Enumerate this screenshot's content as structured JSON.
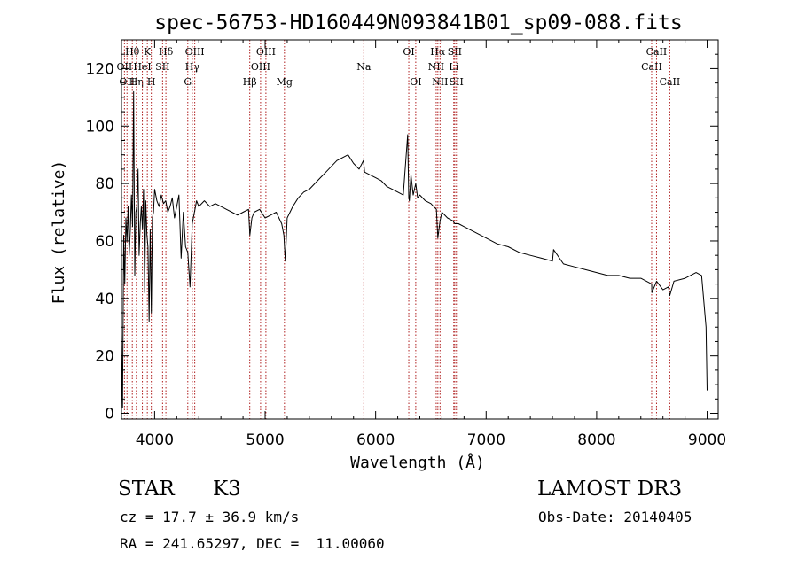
{
  "chart_data": {
    "type": "line",
    "title": "spec-56753-HD160449N093841B01_sp09-088.fits",
    "xlabel": "Wavelength (Å)",
    "ylabel": "Flux (relative)",
    "xlim": [
      3700,
      9100
    ],
    "ylim": [
      -2,
      130
    ],
    "xticks": [
      4000,
      5000,
      6000,
      7000,
      8000,
      9000
    ],
    "yticks": [
      0,
      20,
      40,
      60,
      80,
      100,
      120
    ],
    "grid": false,
    "line_color": "#000000",
    "marker_color": "#b02020",
    "series": [
      {
        "name": "flux",
        "x": [
          3700,
          3710,
          3720,
          3730,
          3740,
          3750,
          3760,
          3770,
          3780,
          3790,
          3800,
          3810,
          3820,
          3830,
          3840,
          3850,
          3860,
          3870,
          3880,
          3890,
          3900,
          3910,
          3920,
          3930,
          3940,
          3950,
          3960,
          3970,
          3980,
          3990,
          4000,
          4020,
          4040,
          4060,
          4080,
          4100,
          4120,
          4140,
          4160,
          4180,
          4200,
          4220,
          4240,
          4260,
          4280,
          4300,
          4320,
          4340,
          4360,
          4380,
          4400,
          4450,
          4500,
          4550,
          4600,
          4650,
          4700,
          4750,
          4800,
          4850,
          4862,
          4880,
          4900,
          4950,
          5000,
          5050,
          5100,
          5150,
          5170,
          5183,
          5200,
          5250,
          5300,
          5350,
          5400,
          5450,
          5500,
          5550,
          5600,
          5650,
          5700,
          5750,
          5800,
          5850,
          5890,
          5895,
          5900,
          5950,
          6000,
          6050,
          6100,
          6150,
          6200,
          6250,
          6290,
          6300,
          6305,
          6320,
          6340,
          6363,
          6380,
          6400,
          6450,
          6500,
          6550,
          6563,
          6583,
          6600,
          6650,
          6700,
          6716,
          6750,
          6800,
          6900,
          7000,
          7100,
          7200,
          7300,
          7400,
          7500,
          7600,
          7610,
          7700,
          7800,
          7900,
          8000,
          8100,
          8200,
          8300,
          8400,
          8498,
          8500,
          8542,
          8600,
          8650,
          8662,
          8700,
          8800,
          8900,
          8950,
          8990,
          9000
        ],
        "y": [
          28,
          2,
          62,
          45,
          68,
          60,
          72,
          55,
          64,
          76,
          65,
          112,
          48,
          70,
          72,
          85,
          55,
          66,
          72,
          64,
          78,
          42,
          74,
          62,
          58,
          32,
          64,
          35,
          68,
          70,
          78,
          74,
          72,
          76,
          73,
          74,
          70,
          72,
          75,
          68,
          72,
          76,
          54,
          70,
          58,
          56,
          44,
          66,
          70,
          74,
          72,
          74,
          72,
          73,
          72,
          71,
          70,
          69,
          70,
          71,
          62,
          68,
          70,
          71,
          68,
          69,
          70,
          66,
          62,
          53,
          68,
          72,
          75,
          77,
          78,
          80,
          82,
          84,
          86,
          88,
          89,
          90,
          87,
          85,
          88,
          86,
          84,
          83,
          82,
          81,
          79,
          78,
          77,
          76,
          97,
          75,
          74,
          83,
          76,
          80,
          75,
          76,
          74,
          73,
          71,
          61,
          67,
          70,
          68,
          67,
          66,
          66,
          65,
          63,
          61,
          59,
          58,
          56,
          55,
          54,
          53,
          57,
          52,
          51,
          50,
          49,
          48,
          48,
          47,
          47,
          45,
          42,
          46,
          43,
          44,
          41,
          46,
          47,
          49,
          48,
          30,
          8
        ]
      }
    ],
    "line_markers": [
      {
        "wavelength": 3727,
        "label": "OII",
        "row": 2
      },
      {
        "wavelength": 3750,
        "label": "OII",
        "row": 3
      },
      {
        "wavelength": 3798,
        "label": "Hθ",
        "row": 1
      },
      {
        "wavelength": 3835,
        "label": "Hη",
        "row": 3
      },
      {
        "wavelength": 3889,
        "label": "HeI",
        "row": 2
      },
      {
        "wavelength": 3934,
        "label": "K",
        "row": 1
      },
      {
        "wavelength": 3970,
        "label": "H",
        "row": 3
      },
      {
        "wavelength": 4072,
        "label": "SII",
        "row": 2
      },
      {
        "wavelength": 4102,
        "label": "Hδ",
        "row": 1
      },
      {
        "wavelength": 4300,
        "label": "G",
        "row": 3
      },
      {
        "wavelength": 4341,
        "label": "Hγ",
        "row": 2
      },
      {
        "wavelength": 4363,
        "label": "OIII",
        "row": 1
      },
      {
        "wavelength": 4861,
        "label": "Hβ",
        "row": 3
      },
      {
        "wavelength": 4959,
        "label": "OIII",
        "row": 2
      },
      {
        "wavelength": 5007,
        "label": "OIII",
        "row": 1
      },
      {
        "wavelength": 5175,
        "label": "Mg",
        "row": 3
      },
      {
        "wavelength": 5893,
        "label": "Na",
        "row": 2
      },
      {
        "wavelength": 6300,
        "label": "OI",
        "row": 1
      },
      {
        "wavelength": 6363,
        "label": "OI",
        "row": 3
      },
      {
        "wavelength": 6548,
        "label": "NII",
        "row": 2
      },
      {
        "wavelength": 6563,
        "label": "Hα",
        "row": 1
      },
      {
        "wavelength": 6583,
        "label": "NII",
        "row": 3
      },
      {
        "wavelength": 6707,
        "label": "Li",
        "row": 2
      },
      {
        "wavelength": 6716,
        "label": "SII",
        "row": 1
      },
      {
        "wavelength": 6731,
        "label": "SII",
        "row": 3
      },
      {
        "wavelength": 8498,
        "label": "CaII",
        "row": 2
      },
      {
        "wavelength": 8542,
        "label": "CaII",
        "row": 1
      },
      {
        "wavelength": 8662,
        "label": "CaII",
        "row": 3
      }
    ]
  },
  "info": {
    "object_class": "STAR",
    "subclass": "K3",
    "survey": "LAMOST DR3",
    "redshift_line": "cz = 17.7 ± 36.9 km/s",
    "obs_date_line": "Obs-Date: 20140405",
    "coords_line": "RA = 241.65297, DEC =  11.00060"
  }
}
